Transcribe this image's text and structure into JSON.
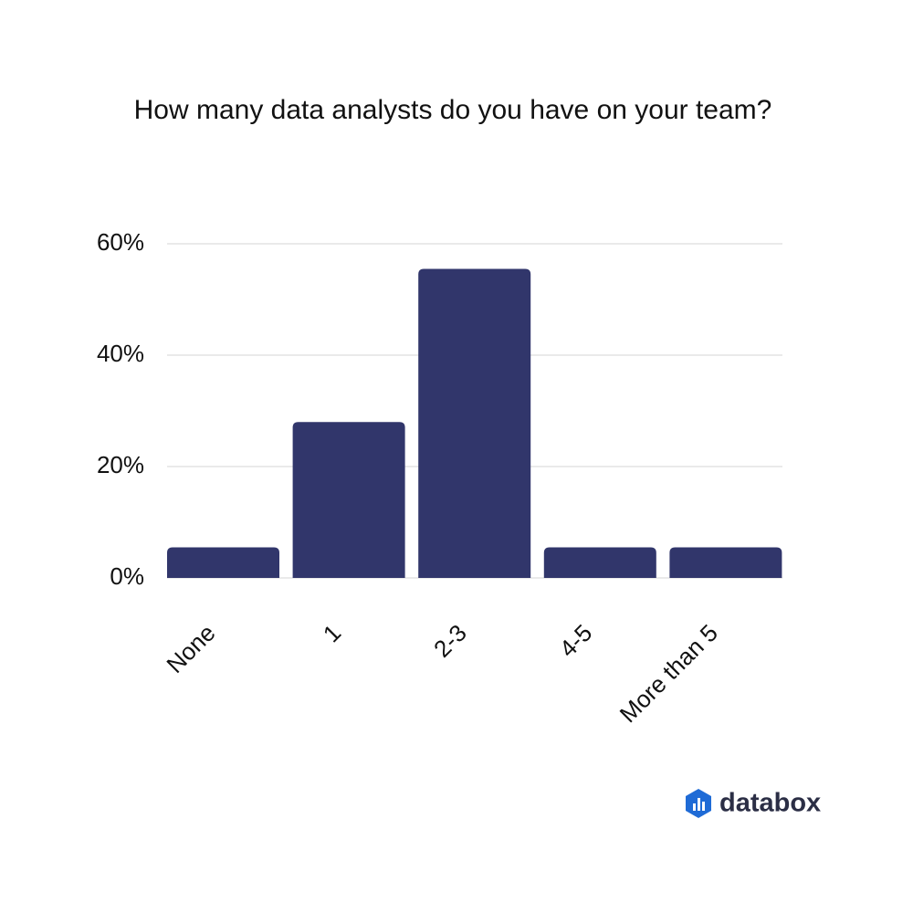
{
  "chart_data": {
    "type": "bar",
    "title": "How many data analysts do you have on your team?",
    "categories": [
      "None",
      "1",
      "2-3",
      "4-5",
      "More than 5"
    ],
    "values": [
      5.5,
      28,
      55.5,
      5.5,
      5.5
    ],
    "color": "#31366b",
    "ylim": [
      0,
      60
    ],
    "yticks": [
      {
        "value": 0,
        "label": "0%"
      },
      {
        "value": 20,
        "label": "20%"
      },
      {
        "value": 40,
        "label": "40%"
      },
      {
        "value": 60,
        "label": "60%"
      }
    ],
    "grid": true
  },
  "brand": "databox"
}
